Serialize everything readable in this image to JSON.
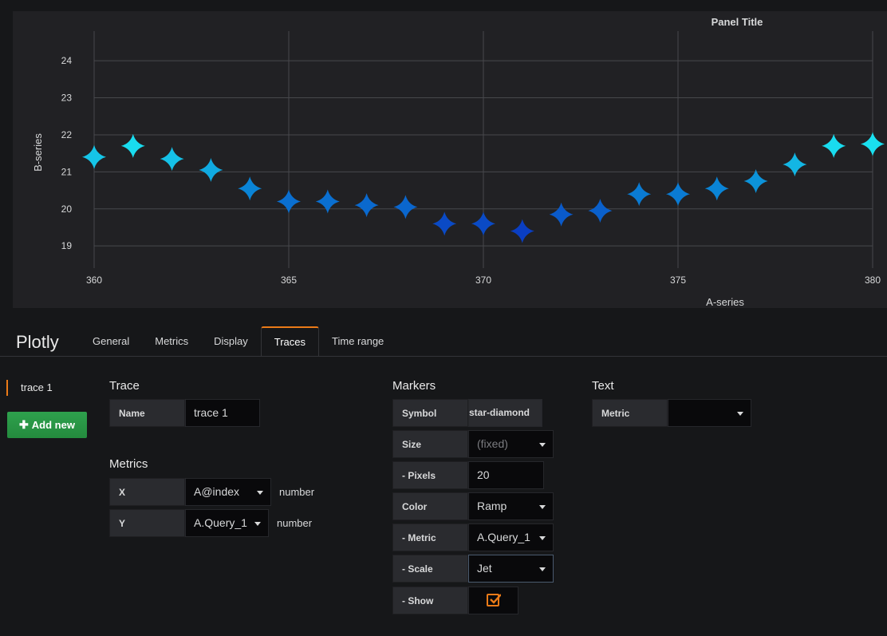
{
  "panel": {
    "title": "Panel Title"
  },
  "chart_data": {
    "type": "scatter",
    "title": "Panel Title",
    "xlabel": "A-series",
    "ylabel": "B-series",
    "xlim": [
      360,
      380
    ],
    "ylim": [
      18.4,
      24.8
    ],
    "xticks": [
      360,
      365,
      370,
      375,
      380
    ],
    "yticks": [
      19,
      20,
      21,
      22,
      23,
      24
    ],
    "grid": true,
    "marker": "star-diamond",
    "marker_size_px": 20,
    "colorscale": "Jet",
    "series": [
      {
        "x": [
          360,
          361,
          362,
          363,
          364,
          365,
          366,
          367,
          368,
          369,
          370,
          371,
          372,
          373,
          374,
          375,
          376,
          377,
          378,
          379,
          380
        ],
        "y": [
          21.4,
          21.7,
          21.35,
          21.05,
          20.55,
          20.2,
          20.2,
          20.1,
          20.05,
          19.6,
          19.6,
          19.4,
          19.85,
          19.95,
          20.4,
          20.4,
          20.55,
          20.75,
          21.2,
          21.7,
          21.75
        ]
      }
    ],
    "colors": {
      "low": "#0a3ec2",
      "mid": "#0a86d6",
      "high": "#1ae0f0"
    }
  },
  "editor": {
    "app_title": "Plotly",
    "tabs": [
      "General",
      "Metrics",
      "Display",
      "Traces",
      "Time range"
    ],
    "active_tab": "Traces",
    "traces": [
      "trace 1"
    ],
    "add_new_label": "Add new",
    "trace_section": {
      "heading": "Trace",
      "name_label": "Name",
      "name_value": "trace 1"
    },
    "metrics_section": {
      "heading": "Metrics",
      "x_label": "X",
      "x_value": "A@index",
      "x_type": "number",
      "y_label": "Y",
      "y_value": "A.Query_1",
      "y_type": "number"
    },
    "markers_section": {
      "heading": "Markers",
      "symbol_label": "Symbol",
      "symbol_value": "star-diamond",
      "size_label": "Size",
      "size_value": "(fixed)",
      "pixels_label": "- Pixels",
      "pixels_value": "20",
      "color_label": "Color",
      "color_value": "Ramp",
      "metric_label": "- Metric",
      "metric_value": "A.Query_1",
      "scale_label": "- Scale",
      "scale_value": "Jet",
      "show_label": "- Show",
      "show_checked": true
    },
    "text_section": {
      "heading": "Text",
      "metric_label": "Metric",
      "metric_value": ""
    }
  }
}
